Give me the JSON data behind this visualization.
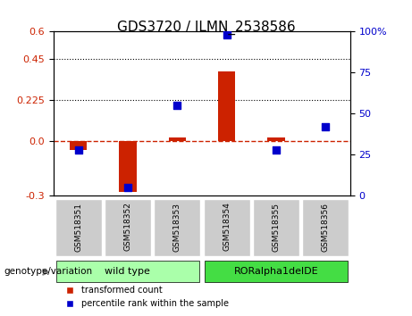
{
  "title": "GDS3720 / ILMN_2538586",
  "samples": [
    "GSM518351",
    "GSM518352",
    "GSM518353",
    "GSM518354",
    "GSM518355",
    "GSM518356"
  ],
  "transformed_count": [
    -0.05,
    -0.28,
    0.02,
    0.38,
    0.02,
    0.0
  ],
  "percentile_rank": [
    28,
    5,
    55,
    98,
    28,
    42
  ],
  "groups": [
    {
      "label": "wild type",
      "indices": [
        0,
        1,
        2
      ],
      "color": "#90EE90"
    },
    {
      "label": "RORalpha1delDE",
      "indices": [
        3,
        4,
        5
      ],
      "color": "#00CC44"
    }
  ],
  "ylim_left": [
    -0.3,
    0.6
  ],
  "ylim_right": [
    0,
    100
  ],
  "yticks_left": [
    -0.3,
    0.0,
    0.225,
    0.45,
    0.6
  ],
  "yticks_right": [
    0,
    25,
    50,
    75,
    100
  ],
  "hline_y": 0.0,
  "dotted_lines": [
    0.225,
    0.45
  ],
  "bar_color": "#CC2200",
  "dot_color": "#0000CC",
  "bar_width": 0.35,
  "dot_size": 40,
  "genotype_label": "genotype/variation",
  "legend_bar": "transformed count",
  "legend_dot": "percentile rank within the sample",
  "background_plot": "#FFFFFF",
  "background_xticklabel": "#C0C0C0",
  "background_group_wt": "#AAFFAA",
  "background_group_ro": "#44DD44"
}
